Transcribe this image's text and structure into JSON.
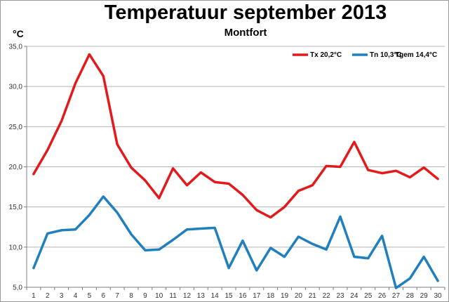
{
  "chart_data": {
    "type": "line",
    "title": "Temperatuur september 2013",
    "subtitle": "Montfort",
    "ylabel": "°C",
    "ylim": [
      5,
      35
    ],
    "ytick_step": 5,
    "ytick_labels": [
      "5,0",
      "10,0",
      "15,0",
      "20,0",
      "25,0",
      "30,0",
      "35,0"
    ],
    "x": [
      1,
      2,
      3,
      4,
      5,
      6,
      7,
      8,
      9,
      10,
      11,
      12,
      13,
      14,
      15,
      16,
      17,
      18,
      19,
      20,
      21,
      22,
      23,
      24,
      25,
      26,
      27,
      28,
      29,
      30
    ],
    "grid": true,
    "legend_position": "top-right",
    "series": [
      {
        "name": "Tx 20,2°C",
        "color": "#e31a1c",
        "values": [
          19.1,
          22.1,
          25.7,
          30.4,
          34.0,
          31.3,
          22.8,
          19.9,
          18.3,
          16.1,
          19.8,
          17.7,
          19.3,
          18.1,
          17.9,
          16.5,
          14.6,
          13.7,
          15.0,
          17.0,
          17.7,
          20.1,
          20.0,
          23.1,
          19.6,
          19.2,
          19.5,
          18.7,
          19.9,
          18.5
        ]
      },
      {
        "name": "Tn 10,3°C",
        "color": "#1f7fbf",
        "values": [
          7.4,
          11.7,
          12.1,
          12.2,
          14.0,
          16.3,
          14.3,
          11.6,
          9.6,
          9.7,
          10.9,
          12.2,
          12.3,
          12.4,
          7.4,
          10.8,
          7.1,
          9.9,
          8.8,
          11.3,
          10.4,
          9.7,
          13.8,
          8.8,
          8.6,
          11.4,
          4.9,
          6.1,
          8.8,
          5.8
        ]
      }
    ],
    "legend_extra": "Tgem 14,4°C"
  }
}
